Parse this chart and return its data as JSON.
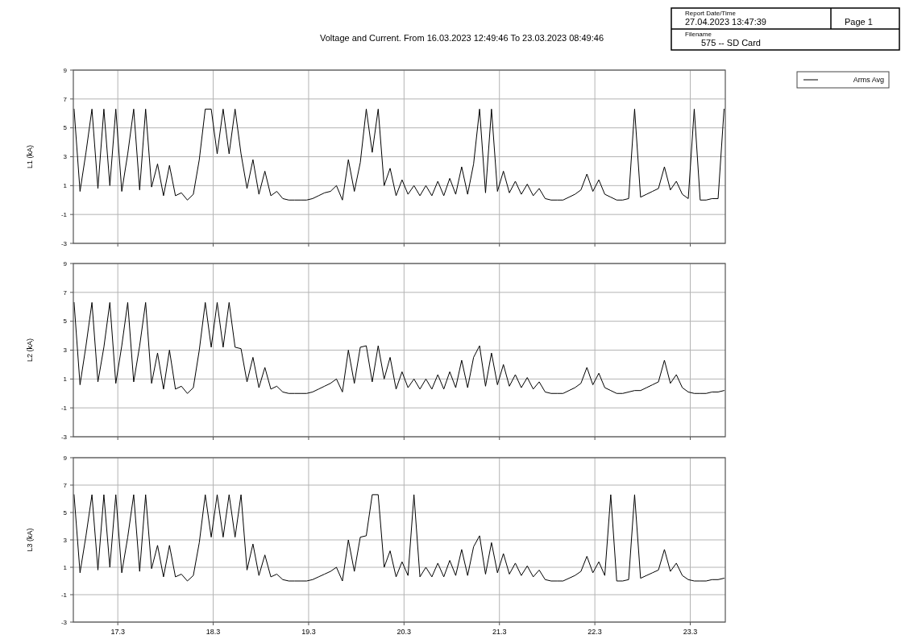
{
  "chart_data": [
    {
      "type": "line",
      "title": "Voltage and Current. From 16.03.2023 12:49:46 To 23.03.2023 08:49:46",
      "ylabel": "L1 (kA)",
      "annotations": [
        "Report Date/Time",
        "27.04.2023 13:47:39",
        "Page 1",
        "Filename",
        "575 -- SD Card"
      ],
      "legend": "top right",
      "grid": true,
      "tick_labels": "y",
      "xlim": [
        "2023-03-16T12:49",
        "2023-03-23T08:49"
      ],
      "xticks": [
        {
          "value": "2023-03-17",
          "label": null
        },
        {
          "value": "2023-03-18",
          "label": null
        },
        {
          "value": "2023-03-19",
          "label": null
        },
        {
          "value": "2023-03-20",
          "label": null
        },
        {
          "value": "2023-03-21",
          "label": null
        },
        {
          "value": "2023-03-22",
          "label": null
        },
        {
          "value": "2023-03-23",
          "label": null
        }
      ],
      "ylim": [
        -3,
        9
      ],
      "yticks": [
        -3,
        -1,
        1,
        3,
        5,
        7,
        9
      ],
      "x": [
        "2023-03-16T13:00",
        "2023-03-16T14:30",
        "2023-03-16T16:00",
        "2023-03-16T17:30",
        "2023-03-16T19:00",
        "2023-03-16T20:30",
        "2023-03-16T22:00",
        "2023-03-16T23:30",
        "2023-03-17T01:00",
        "2023-03-17T02:30",
        "2023-03-17T04:00",
        "2023-03-17T05:30",
        "2023-03-17T07:00",
        "2023-03-17T08:30",
        "2023-03-17T10:00",
        "2023-03-17T11:30",
        "2023-03-17T13:00",
        "2023-03-17T14:30",
        "2023-03-17T16:00",
        "2023-03-17T17:30",
        "2023-03-17T19:00",
        "2023-03-17T20:30",
        "2023-03-17T22:00",
        "2023-03-17T23:30",
        "2023-03-18T01:00",
        "2023-03-18T02:30",
        "2023-03-18T04:00",
        "2023-03-18T05:30",
        "2023-03-18T07:00",
        "2023-03-18T08:30",
        "2023-03-18T10:00",
        "2023-03-18T11:30",
        "2023-03-18T13:00",
        "2023-03-18T14:30",
        "2023-03-18T16:00",
        "2023-03-18T17:30",
        "2023-03-18T19:00",
        "2023-03-18T20:30",
        "2023-03-18T22:00",
        "2023-03-18T23:30",
        "2023-03-19T01:00",
        "2023-03-19T02:30",
        "2023-03-19T04:00",
        "2023-03-19T05:30",
        "2023-03-19T07:00",
        "2023-03-19T08:30",
        "2023-03-19T10:00",
        "2023-03-19T11:30",
        "2023-03-19T13:00",
        "2023-03-19T14:30",
        "2023-03-19T16:00",
        "2023-03-19T17:30",
        "2023-03-19T19:00",
        "2023-03-19T20:30",
        "2023-03-19T22:00",
        "2023-03-19T23:30",
        "2023-03-20T01:00",
        "2023-03-20T02:30",
        "2023-03-20T04:00",
        "2023-03-20T05:30",
        "2023-03-20T07:00",
        "2023-03-20T08:30",
        "2023-03-20T10:00",
        "2023-03-20T11:30",
        "2023-03-20T13:00",
        "2023-03-20T14:30",
        "2023-03-20T16:00",
        "2023-03-20T17:30",
        "2023-03-20T19:00",
        "2023-03-20T20:30",
        "2023-03-20T22:00",
        "2023-03-20T23:30",
        "2023-03-21T01:00",
        "2023-03-21T02:30",
        "2023-03-21T04:00",
        "2023-03-21T05:30",
        "2023-03-21T07:00",
        "2023-03-21T08:30",
        "2023-03-21T10:00",
        "2023-03-21T11:30",
        "2023-03-21T13:00",
        "2023-03-21T14:30",
        "2023-03-21T16:00",
        "2023-03-21T17:30",
        "2023-03-21T19:00",
        "2023-03-21T20:30",
        "2023-03-21T22:00",
        "2023-03-21T23:30",
        "2023-03-22T01:00",
        "2023-03-22T02:30",
        "2023-03-22T04:00",
        "2023-03-22T05:30",
        "2023-03-22T07:00",
        "2023-03-22T08:30",
        "2023-03-22T10:00",
        "2023-03-22T11:30",
        "2023-03-22T13:00",
        "2023-03-22T14:30",
        "2023-03-22T16:00",
        "2023-03-22T17:30",
        "2023-03-22T19:00",
        "2023-03-22T20:30",
        "2023-03-22T22:00",
        "2023-03-22T23:30",
        "2023-03-23T01:00",
        "2023-03-23T02:30",
        "2023-03-23T04:00",
        "2023-03-23T05:30",
        "2023-03-23T07:00",
        "2023-03-23T08:30"
      ],
      "series": [
        {
          "name": "Arms Avg",
          "color": "#000000",
          "values": [
            6.3,
            0.6,
            3.3,
            6.3,
            0.8,
            6.3,
            1.0,
            6.3,
            0.6,
            3.2,
            6.3,
            0.7,
            6.3,
            0.9,
            2.5,
            0.3,
            2.4,
            0.3,
            0.5,
            0,
            0.4,
            2.8,
            6.3,
            6.3,
            3.2,
            6.3,
            3.2,
            6.3,
            3.2,
            0.8,
            2.8,
            0.4,
            2.0,
            0.3,
            0.6,
            0.1,
            0,
            0,
            0,
            0,
            0.1,
            0.3,
            0.5,
            0.6,
            1.0,
            0,
            2.8,
            0.6,
            2.6,
            6.3,
            3.3,
            6.3,
            1.0,
            2.2,
            0.3,
            1.4,
            0.4,
            1.0,
            0.3,
            1.0,
            0.3,
            1.3,
            0.3,
            1.5,
            0.4,
            2.3,
            0.4,
            2.5,
            6.3,
            0.5,
            6.3,
            0.6,
            2.0,
            0.5,
            1.3,
            0.4,
            1.1,
            0.3,
            0.8,
            0.1,
            0,
            0,
            0,
            0.2,
            0.4,
            0.7,
            1.8,
            0.6,
            1.4,
            0.4,
            0.2,
            0,
            0,
            0.1,
            6.3,
            0.2,
            0.4,
            0.6,
            0.8,
            2.3,
            0.7,
            1.3,
            0.4,
            0.1,
            6.3,
            0,
            0,
            0.1,
            0.1,
            6.3
          ]
        }
      ]
    },
    {
      "type": "line",
      "ylabel": "L2 (kA)",
      "grid": true,
      "tick_labels": "y",
      "xlim": [
        "2023-03-16T12:49",
        "2023-03-23T08:49"
      ],
      "xticks": [
        {
          "value": "2023-03-17",
          "label": null
        },
        {
          "value": "2023-03-18",
          "label": null
        },
        {
          "value": "2023-03-19",
          "label": null
        },
        {
          "value": "2023-03-20",
          "label": null
        },
        {
          "value": "2023-03-21",
          "label": null
        },
        {
          "value": "2023-03-22",
          "label": null
        },
        {
          "value": "2023-03-23",
          "label": null
        }
      ],
      "ylim": [
        -3,
        9
      ],
      "yticks": [
        -3,
        -1,
        1,
        3,
        5,
        7,
        9
      ],
      "x": [
        "2023-03-16T13:00",
        "2023-03-16T14:30",
        "2023-03-16T16:00",
        "2023-03-16T17:30",
        "2023-03-16T19:00",
        "2023-03-16T20:30",
        "2023-03-16T22:00",
        "2023-03-16T23:30",
        "2023-03-17T01:00",
        "2023-03-17T02:30",
        "2023-03-17T04:00",
        "2023-03-17T05:30",
        "2023-03-17T07:00",
        "2023-03-17T08:30",
        "2023-03-17T10:00",
        "2023-03-17T11:30",
        "2023-03-17T13:00",
        "2023-03-17T14:30",
        "2023-03-17T16:00",
        "2023-03-17T17:30",
        "2023-03-17T19:00",
        "2023-03-17T20:30",
        "2023-03-17T22:00",
        "2023-03-17T23:30",
        "2023-03-18T01:00",
        "2023-03-18T02:30",
        "2023-03-18T04:00",
        "2023-03-18T05:30",
        "2023-03-18T07:00",
        "2023-03-18T08:30",
        "2023-03-18T10:00",
        "2023-03-18T11:30",
        "2023-03-18T13:00",
        "2023-03-18T14:30",
        "2023-03-18T16:00",
        "2023-03-18T17:30",
        "2023-03-18T19:00",
        "2023-03-18T20:30",
        "2023-03-18T22:00",
        "2023-03-18T23:30",
        "2023-03-19T01:00",
        "2023-03-19T02:30",
        "2023-03-19T04:00",
        "2023-03-19T05:30",
        "2023-03-19T07:00",
        "2023-03-19T08:30",
        "2023-03-19T10:00",
        "2023-03-19T11:30",
        "2023-03-19T13:00",
        "2023-03-19T14:30",
        "2023-03-19T16:00",
        "2023-03-19T17:30",
        "2023-03-19T19:00",
        "2023-03-19T20:30",
        "2023-03-19T22:00",
        "2023-03-19T23:30",
        "2023-03-20T01:00",
        "2023-03-20T02:30",
        "2023-03-20T04:00",
        "2023-03-20T05:30",
        "2023-03-20T07:00",
        "2023-03-20T08:30",
        "2023-03-20T10:00",
        "2023-03-20T11:30",
        "2023-03-20T13:00",
        "2023-03-20T14:30",
        "2023-03-20T16:00",
        "2023-03-20T17:30",
        "2023-03-20T19:00",
        "2023-03-20T20:30",
        "2023-03-20T22:00",
        "2023-03-20T23:30",
        "2023-03-21T01:00",
        "2023-03-21T02:30",
        "2023-03-21T04:00",
        "2023-03-21T05:30",
        "2023-03-21T07:00",
        "2023-03-21T08:30",
        "2023-03-21T10:00",
        "2023-03-21T11:30",
        "2023-03-21T13:00",
        "2023-03-21T14:30",
        "2023-03-21T16:00",
        "2023-03-21T17:30",
        "2023-03-21T19:00",
        "2023-03-21T20:30",
        "2023-03-21T22:00",
        "2023-03-21T23:30",
        "2023-03-22T01:00",
        "2023-03-22T02:30",
        "2023-03-22T04:00",
        "2023-03-22T05:30",
        "2023-03-22T07:00",
        "2023-03-22T08:30",
        "2023-03-22T10:00",
        "2023-03-22T11:30",
        "2023-03-22T13:00",
        "2023-03-22T14:30",
        "2023-03-22T16:00",
        "2023-03-22T17:30",
        "2023-03-22T19:00",
        "2023-03-22T20:30",
        "2023-03-22T22:00",
        "2023-03-22T23:30",
        "2023-03-23T01:00",
        "2023-03-23T02:30",
        "2023-03-23T04:00",
        "2023-03-23T05:30",
        "2023-03-23T07:00",
        "2023-03-23T08:30"
      ],
      "series": [
        {
          "color": "#000000",
          "values": [
            6.3,
            0.6,
            3.3,
            6.3,
            0.8,
            3.2,
            6.3,
            0.7,
            3.3,
            6.3,
            0.8,
            3.3,
            6.3,
            0.7,
            2.8,
            0.3,
            3.0,
            0.3,
            0.5,
            0,
            0.4,
            3.0,
            6.3,
            3.2,
            6.3,
            3.2,
            6.3,
            3.2,
            3.1,
            0.8,
            2.5,
            0.4,
            1.8,
            0.3,
            0.5,
            0.1,
            0,
            0,
            0,
            0,
            0.1,
            0.3,
            0.5,
            0.7,
            1.0,
            0.1,
            3.0,
            0.7,
            3.2,
            3.3,
            0.8,
            3.3,
            1.0,
            2.5,
            0.3,
            1.5,
            0.4,
            1.0,
            0.3,
            1.0,
            0.3,
            1.3,
            0.3,
            1.5,
            0.4,
            2.3,
            0.4,
            2.5,
            3.3,
            0.5,
            2.8,
            0.6,
            2.0,
            0.5,
            1.3,
            0.4,
            1.1,
            0.3,
            0.8,
            0.1,
            0,
            0,
            0,
            0.2,
            0.4,
            0.7,
            1.8,
            0.6,
            1.4,
            0.4,
            0.2,
            0,
            0,
            0.1,
            0.2,
            0.2,
            0.4,
            0.6,
            0.8,
            2.3,
            0.7,
            1.3,
            0.4,
            0.1,
            0,
            0,
            0,
            0.1,
            0.1,
            0.2
          ]
        }
      ]
    },
    {
      "type": "line",
      "ylabel": "L3 (kA)",
      "grid": true,
      "xlim": [
        "2023-03-16T12:49",
        "2023-03-23T08:49"
      ],
      "xticks": [
        {
          "value": "2023-03-17",
          "label": "17.3"
        },
        {
          "value": "2023-03-18",
          "label": "18.3"
        },
        {
          "value": "2023-03-19",
          "label": "19.3"
        },
        {
          "value": "2023-03-20",
          "label": "20.3"
        },
        {
          "value": "2023-03-21",
          "label": "21.3"
        },
        {
          "value": "2023-03-22",
          "label": "22.3"
        },
        {
          "value": "2023-03-23",
          "label": "23.3"
        }
      ],
      "ylim": [
        -3,
        9
      ],
      "yticks": [
        -3,
        -1,
        1,
        3,
        5,
        7,
        9
      ],
      "x": [
        "2023-03-16T13:00",
        "2023-03-16T14:30",
        "2023-03-16T16:00",
        "2023-03-16T17:30",
        "2023-03-16T19:00",
        "2023-03-16T20:30",
        "2023-03-16T22:00",
        "2023-03-16T23:30",
        "2023-03-17T01:00",
        "2023-03-17T02:30",
        "2023-03-17T04:00",
        "2023-03-17T05:30",
        "2023-03-17T07:00",
        "2023-03-17T08:30",
        "2023-03-17T10:00",
        "2023-03-17T11:30",
        "2023-03-17T13:00",
        "2023-03-17T14:30",
        "2023-03-17T16:00",
        "2023-03-17T17:30",
        "2023-03-17T19:00",
        "2023-03-17T20:30",
        "2023-03-17T22:00",
        "2023-03-17T23:30",
        "2023-03-18T01:00",
        "2023-03-18T02:30",
        "2023-03-18T04:00",
        "2023-03-18T05:30",
        "2023-03-18T07:00",
        "2023-03-18T08:30",
        "2023-03-18T10:00",
        "2023-03-18T11:30",
        "2023-03-18T13:00",
        "2023-03-18T14:30",
        "2023-03-18T16:00",
        "2023-03-18T17:30",
        "2023-03-18T19:00",
        "2023-03-18T20:30",
        "2023-03-18T22:00",
        "2023-03-18T23:30",
        "2023-03-19T01:00",
        "2023-03-19T02:30",
        "2023-03-19T04:00",
        "2023-03-19T05:30",
        "2023-03-19T07:00",
        "2023-03-19T08:30",
        "2023-03-19T10:00",
        "2023-03-19T11:30",
        "2023-03-19T13:00",
        "2023-03-19T14:30",
        "2023-03-19T16:00",
        "2023-03-19T17:30",
        "2023-03-19T19:00",
        "2023-03-19T20:30",
        "2023-03-19T22:00",
        "2023-03-19T23:30",
        "2023-03-20T01:00",
        "2023-03-20T02:30",
        "2023-03-20T04:00",
        "2023-03-20T05:30",
        "2023-03-20T07:00",
        "2023-03-20T08:30",
        "2023-03-20T10:00",
        "2023-03-20T11:30",
        "2023-03-20T13:00",
        "2023-03-20T14:30",
        "2023-03-20T16:00",
        "2023-03-20T17:30",
        "2023-03-20T19:00",
        "2023-03-20T20:30",
        "2023-03-20T22:00",
        "2023-03-20T23:30",
        "2023-03-21T01:00",
        "2023-03-21T02:30",
        "2023-03-21T04:00",
        "2023-03-21T05:30",
        "2023-03-21T07:00",
        "2023-03-21T08:30",
        "2023-03-21T10:00",
        "2023-03-21T11:30",
        "2023-03-21T13:00",
        "2023-03-21T14:30",
        "2023-03-21T16:00",
        "2023-03-21T17:30",
        "2023-03-21T19:00",
        "2023-03-21T20:30",
        "2023-03-21T22:00",
        "2023-03-21T23:30",
        "2023-03-22T01:00",
        "2023-03-22T02:30",
        "2023-03-22T04:00",
        "2023-03-22T05:30",
        "2023-03-22T07:00",
        "2023-03-22T08:30",
        "2023-03-22T10:00",
        "2023-03-22T11:30",
        "2023-03-22T13:00",
        "2023-03-22T14:30",
        "2023-03-22T16:00",
        "2023-03-22T17:30",
        "2023-03-22T19:00",
        "2023-03-22T20:30",
        "2023-03-22T22:00",
        "2023-03-22T23:30",
        "2023-03-23T01:00",
        "2023-03-23T02:30",
        "2023-03-23T04:00",
        "2023-03-23T05:30",
        "2023-03-23T07:00",
        "2023-03-23T08:30"
      ],
      "series": [
        {
          "color": "#000000",
          "values": [
            6.3,
            0.6,
            3.3,
            6.3,
            0.8,
            6.3,
            1.0,
            6.3,
            0.6,
            3.2,
            6.3,
            0.7,
            6.3,
            0.9,
            2.6,
            0.3,
            2.6,
            0.3,
            0.5,
            0,
            0.4,
            2.8,
            6.3,
            3.2,
            6.3,
            3.2,
            6.3,
            3.2,
            6.3,
            0.8,
            2.7,
            0.4,
            1.9,
            0.3,
            0.5,
            0.1,
            0,
            0,
            0,
            0,
            0.1,
            0.3,
            0.5,
            0.7,
            1.0,
            0,
            3.0,
            0.7,
            3.2,
            3.3,
            6.3,
            6.3,
            1.0,
            2.2,
            0.3,
            1.4,
            0.4,
            6.3,
            0.3,
            1.0,
            0.3,
            1.3,
            0.3,
            1.5,
            0.4,
            2.3,
            0.4,
            2.5,
            3.3,
            0.5,
            2.8,
            0.6,
            2.0,
            0.5,
            1.3,
            0.4,
            1.1,
            0.3,
            0.8,
            0.1,
            0,
            0,
            0,
            0.2,
            0.4,
            0.7,
            1.8,
            0.6,
            1.4,
            0.4,
            6.3,
            0,
            0,
            0.1,
            6.3,
            0.2,
            0.4,
            0.6,
            0.8,
            2.3,
            0.7,
            1.3,
            0.4,
            0.1,
            0,
            0,
            0,
            0.1,
            0.1,
            0.2
          ]
        }
      ]
    }
  ]
}
